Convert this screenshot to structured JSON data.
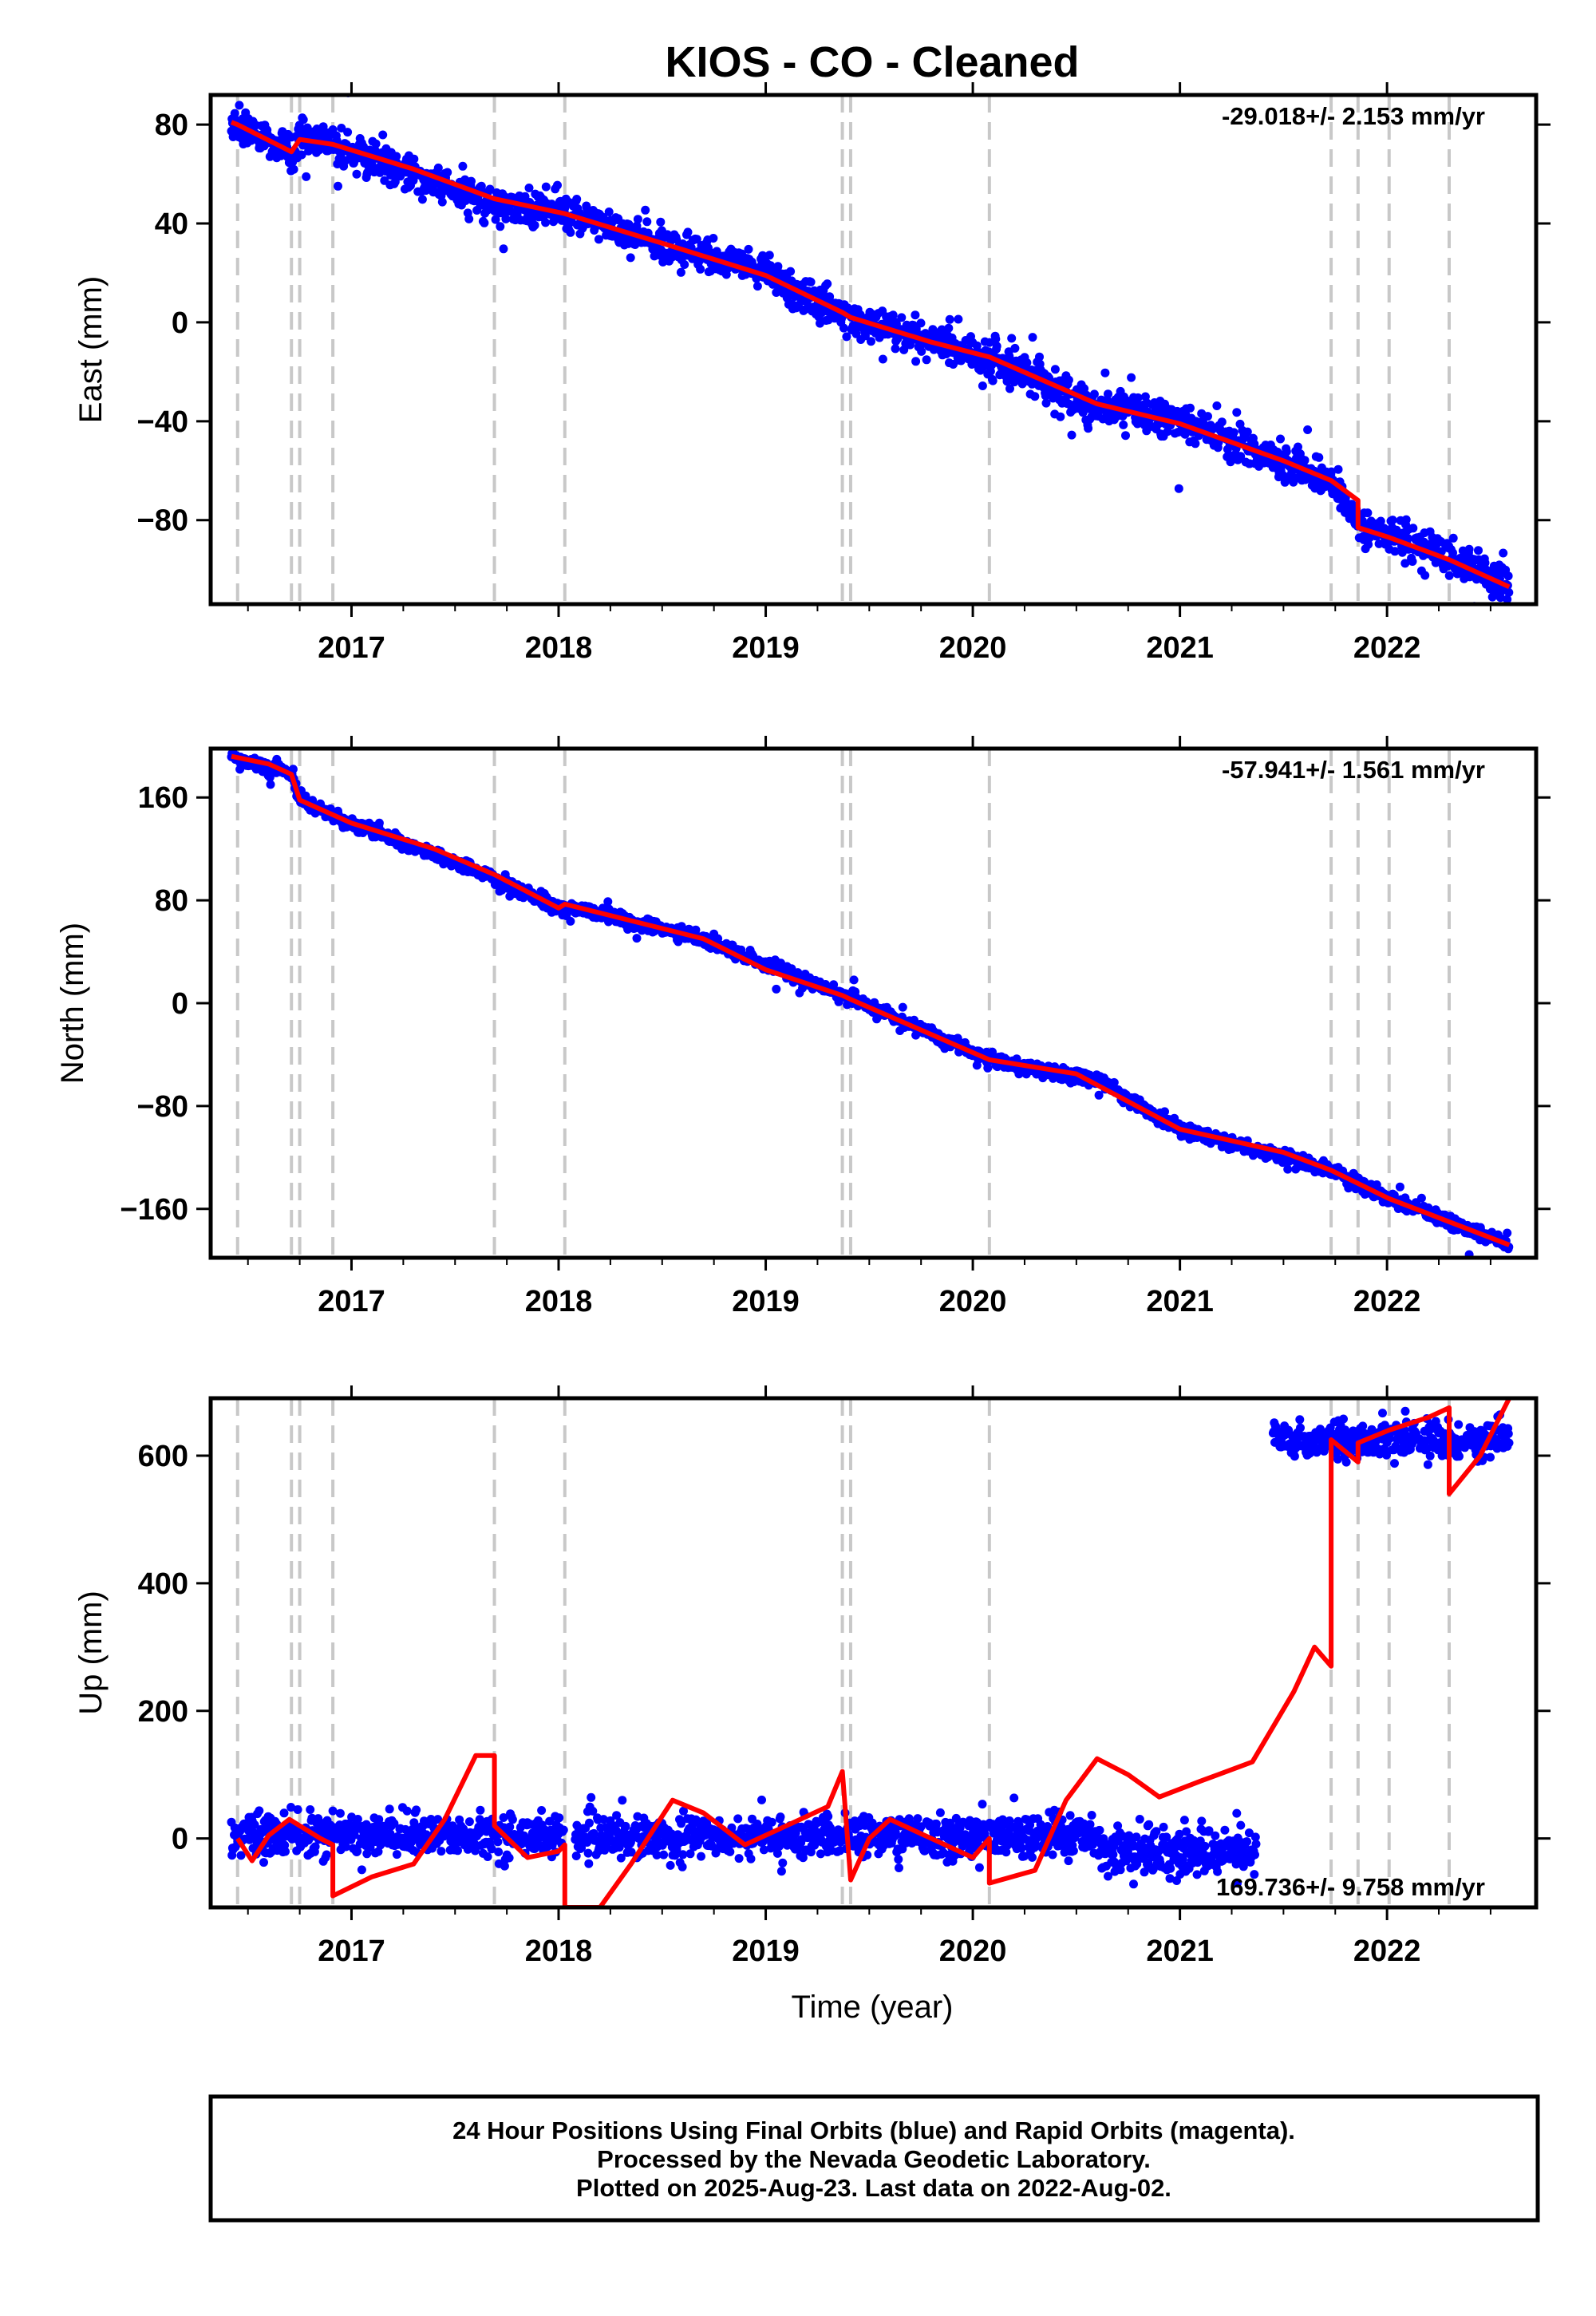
{
  "title": "KIOS  - CO - Cleaned",
  "colors": {
    "observations": "#0000ff",
    "model": "#ff0000",
    "event_lines": "#c8c8c8",
    "frame": "#000000"
  },
  "x_axis": {
    "label": "Time (year)",
    "range": [
      2016.32,
      2022.72
    ],
    "ticks": [
      2017,
      2018,
      2019,
      2020,
      2021,
      2022
    ],
    "tick_labels": [
      "2017",
      "2018",
      "2019",
      "2020",
      "2021",
      "2022"
    ]
  },
  "event_lines_year": [
    2016.45,
    2016.71,
    2016.75,
    2016.91,
    2017.69,
    2018.03,
    2019.37,
    2019.41,
    2020.08,
    2021.73,
    2021.86,
    2022.01,
    2022.3
  ],
  "chart_data": [
    {
      "type": "scatter",
      "panel": "east",
      "ylabel": "East (mm)",
      "ylim": [
        -114,
        92
      ],
      "yticks": [
        80,
        40,
        0,
        -40,
        -80
      ],
      "ytick_labels": [
        "80",
        "40",
        "0",
        "−40",
        "−80"
      ],
      "rate_label": "-29.018+/- 2.153 mm/yr",
      "rate_position": "top-right",
      "observations": {
        "name": "24 Hour Positions (Final Orbits)",
        "x_range": [
          2016.42,
          2022.59
        ],
        "trend": [
          [
            2016.42,
            81
          ],
          [
            2016.65,
            70
          ],
          [
            2016.71,
            69
          ],
          [
            2016.75,
            74
          ],
          [
            2016.91,
            72
          ],
          [
            2017.69,
            48
          ],
          [
            2018.03,
            44
          ],
          [
            2019.0,
            20
          ],
          [
            2019.41,
            2
          ],
          [
            2020.08,
            -14
          ],
          [
            2020.6,
            -34
          ],
          [
            2021.0,
            -40
          ],
          [
            2021.73,
            -64
          ],
          [
            2021.86,
            -81
          ],
          [
            2022.3,
            -95
          ],
          [
            2022.59,
            -107
          ]
        ],
        "scatter_mm": 3.5
      },
      "model": {
        "name": "Model fit",
        "points": [
          [
            2016.42,
            81
          ],
          [
            2016.45,
            80
          ],
          [
            2016.71,
            69
          ],
          [
            2016.75,
            74
          ],
          [
            2016.91,
            72
          ],
          [
            2017.3,
            62
          ],
          [
            2017.69,
            50
          ],
          [
            2018.03,
            44
          ],
          [
            2018.5,
            32
          ],
          [
            2019.0,
            19
          ],
          [
            2019.37,
            4
          ],
          [
            2019.41,
            2
          ],
          [
            2019.8,
            -8
          ],
          [
            2020.08,
            -14
          ],
          [
            2020.6,
            -33
          ],
          [
            2021.0,
            -41
          ],
          [
            2021.5,
            -56
          ],
          [
            2021.73,
            -64
          ],
          [
            2021.86,
            -72
          ],
          [
            2021.86,
            -83
          ],
          [
            2022.01,
            -87
          ],
          [
            2022.3,
            -96
          ],
          [
            2022.59,
            -107
          ]
        ]
      }
    },
    {
      "type": "scatter",
      "panel": "north",
      "ylabel": "North (mm)",
      "ylim": [
        -198,
        198
      ],
      "yticks": [
        160,
        80,
        0,
        -80,
        -160
      ],
      "ytick_labels": [
        "160",
        "80",
        "0",
        "−80",
        "−160"
      ],
      "rate_label": "-57.941+/- 1.561 mm/yr",
      "rate_position": "top-right",
      "observations": {
        "name": "24 Hour Positions (Final Orbits)",
        "x_range": [
          2016.42,
          2022.59
        ],
        "trend": [
          [
            2016.42,
            192
          ],
          [
            2016.71,
            178
          ],
          [
            2016.75,
            158
          ],
          [
            2017.0,
            140
          ],
          [
            2017.69,
            98
          ],
          [
            2018.0,
            74
          ],
          [
            2018.03,
            76
          ],
          [
            2018.7,
            50
          ],
          [
            2019.37,
            6
          ],
          [
            2019.41,
            4
          ],
          [
            2020.08,
            -44
          ],
          [
            2020.6,
            -60
          ],
          [
            2021.0,
            -98
          ],
          [
            2021.73,
            -130
          ],
          [
            2022.01,
            -152
          ],
          [
            2022.3,
            -170
          ],
          [
            2022.59,
            -188
          ]
        ],
        "scatter_mm": 2.5
      },
      "model": {
        "name": "Model fit",
        "points": [
          [
            2016.42,
            192
          ],
          [
            2016.6,
            186
          ],
          [
            2016.71,
            178
          ],
          [
            2016.75,
            158
          ],
          [
            2017.0,
            140
          ],
          [
            2017.4,
            120
          ],
          [
            2017.69,
            100
          ],
          [
            2018.0,
            74
          ],
          [
            2018.03,
            77
          ],
          [
            2018.7,
            50
          ],
          [
            2019.0,
            26
          ],
          [
            2019.37,
            6
          ],
          [
            2019.41,
            3
          ],
          [
            2020.08,
            -44
          ],
          [
            2020.5,
            -55
          ],
          [
            2021.0,
            -98
          ],
          [
            2021.5,
            -116
          ],
          [
            2021.73,
            -130
          ],
          [
            2022.01,
            -152
          ],
          [
            2022.3,
            -170
          ],
          [
            2022.59,
            -188
          ]
        ]
      }
    },
    {
      "type": "scatter",
      "panel": "up",
      "ylabel": "Up (mm)",
      "ylim": [
        -108,
        690
      ],
      "yticks": [
        600,
        400,
        200,
        0
      ],
      "ytick_labels": [
        "600",
        "400",
        "200",
        "0"
      ],
      "rate_label": "169.736+/- 9.758 mm/yr",
      "rate_position": "bottom-right",
      "observations": {
        "name": "24 Hour Positions (Final Orbits)",
        "segments": [
          {
            "x_range": [
              2016.42,
              2018.03
            ],
            "level": 5,
            "scatter_mm": 16
          },
          {
            "x_range": [
              2018.08,
              2020.62
            ],
            "level": 3,
            "scatter_mm": 16
          },
          {
            "x_range": [
              2020.62,
              2021.37
            ],
            "level": -20,
            "scatter_mm": 18
          },
          {
            "x_range": [
              2021.45,
              2022.59
            ],
            "level": 625,
            "scatter_mm": 14
          }
        ]
      },
      "model": {
        "name": "Model fit",
        "points": [
          [
            2016.45,
            0
          ],
          [
            2016.52,
            -35
          ],
          [
            2016.6,
            5
          ],
          [
            2016.7,
            30
          ],
          [
            2016.85,
            0
          ],
          [
            2016.91,
            -10
          ],
          [
            2016.91,
            -90
          ],
          [
            2017.1,
            -60
          ],
          [
            2017.3,
            -40
          ],
          [
            2017.45,
            30
          ],
          [
            2017.6,
            130
          ],
          [
            2017.69,
            130
          ],
          [
            2017.69,
            20
          ],
          [
            2017.85,
            -30
          ],
          [
            2018.0,
            -20
          ],
          [
            2018.03,
            -10
          ],
          [
            2018.03,
            -108
          ],
          [
            2018.2,
            -108
          ],
          [
            2018.35,
            -40
          ],
          [
            2018.55,
            60
          ],
          [
            2018.7,
            40
          ],
          [
            2018.9,
            -10
          ],
          [
            2019.1,
            20
          ],
          [
            2019.3,
            50
          ],
          [
            2019.37,
            105
          ],
          [
            2019.41,
            -65
          ],
          [
            2019.5,
            0
          ],
          [
            2019.6,
            30
          ],
          [
            2019.8,
            0
          ],
          [
            2020.0,
            -30
          ],
          [
            2020.08,
            0
          ],
          [
            2020.08,
            -70
          ],
          [
            2020.3,
            -50
          ],
          [
            2020.45,
            60
          ],
          [
            2020.6,
            125
          ],
          [
            2020.75,
            100
          ],
          [
            2020.9,
            65
          ],
          [
            2021.1,
            90
          ],
          [
            2021.35,
            120
          ],
          [
            2021.55,
            230
          ],
          [
            2021.65,
            300
          ],
          [
            2021.73,
            270
          ],
          [
            2021.73,
            625
          ],
          [
            2021.86,
            590
          ],
          [
            2021.86,
            620
          ],
          [
            2022.01,
            640
          ],
          [
            2022.2,
            660
          ],
          [
            2022.3,
            675
          ],
          [
            2022.3,
            540
          ],
          [
            2022.45,
            600
          ],
          [
            2022.59,
            690
          ]
        ]
      }
    }
  ],
  "footer": {
    "line1": "24 Hour Positions Using Final Orbits (blue) and Rapid Orbits (magenta).",
    "line2": "Processed by the Nevada Geodetic Laboratory.",
    "line3": "Plotted on 2025-Aug-23. Last data on 2022-Aug-02."
  }
}
